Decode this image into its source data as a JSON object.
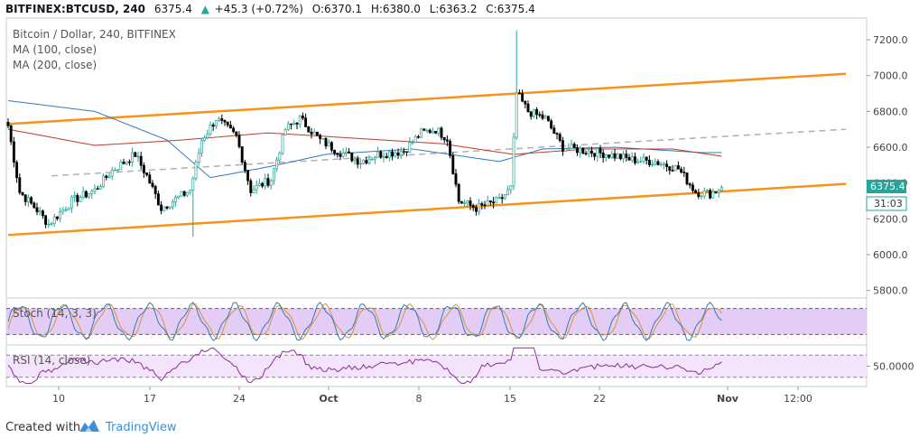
{
  "header": {
    "symbol": "BITFINEX:BTCUSD, 240",
    "last": "6375.4",
    "arrow": "▲",
    "change": "+45.3 (+0.72%)",
    "o_label": "O:",
    "o_value": "6370.1",
    "h_label": "H:",
    "h_value": "6380.0",
    "l_label": "L:",
    "l_value": "6363.2",
    "c_label": "C:",
    "c_value": "6375.4"
  },
  "legend": {
    "title": "Bitcoin / Dollar, 240, BITFINEX",
    "ma100": "MA (100, close)",
    "ma200": "MA (200, close)"
  },
  "price_badge": "6375.4",
  "countdown_badge": "31:03",
  "footer": {
    "created_with": "Created with",
    "brand": "TradingView"
  },
  "colors": {
    "up": "#26a69a",
    "down": "#000000",
    "candle_up_fill": "#ffffff",
    "channel": "#f7931a",
    "midline": "#b0b0b0",
    "ma100": "#2f7bbf",
    "ma200": "#c0392b",
    "stoch_k": "#2f7bbf",
    "stoch_d": "#e0902f",
    "stoch_band": "#e3cdf7",
    "rsi": "#8e2a9e",
    "rsi_band": "#f3e4fb",
    "badge": "#26a69a"
  },
  "chart_data": [
    {
      "type": "candlestick",
      "title": "Bitcoin / Dollar, 240, BITFINEX",
      "x_ticks": [
        "10",
        "17",
        "24",
        "Oct",
        "8",
        "15",
        "22",
        "Nov",
        "12:00"
      ],
      "y_ticks": [
        5800,
        6000,
        6200,
        6400,
        6600,
        6800,
        7000,
        7200
      ],
      "ylim": [
        5780,
        7250
      ],
      "last_price": 6375.4,
      "anchors": [
        {
          "i": 0,
          "p": 6720
        },
        {
          "i": 4,
          "p": 6350
        },
        {
          "i": 10,
          "p": 6250
        },
        {
          "i": 14,
          "p": 6170
        },
        {
          "i": 22,
          "p": 6300
        },
        {
          "i": 30,
          "p": 6360
        },
        {
          "i": 36,
          "p": 6470
        },
        {
          "i": 44,
          "p": 6560
        },
        {
          "i": 48,
          "p": 6440
        },
        {
          "i": 53,
          "p": 6260
        },
        {
          "i": 57,
          "p": 6300
        },
        {
          "i": 63,
          "p": 6360
        },
        {
          "i": 67,
          "p": 6640
        },
        {
          "i": 72,
          "p": 6760
        },
        {
          "i": 79,
          "p": 6660
        },
        {
          "i": 84,
          "p": 6360
        },
        {
          "i": 91,
          "p": 6420
        },
        {
          "i": 96,
          "p": 6700
        },
        {
          "i": 101,
          "p": 6760
        },
        {
          "i": 108,
          "p": 6640
        },
        {
          "i": 114,
          "p": 6580
        },
        {
          "i": 122,
          "p": 6520
        },
        {
          "i": 128,
          "p": 6560
        },
        {
          "i": 137,
          "p": 6580
        },
        {
          "i": 143,
          "p": 6680
        },
        {
          "i": 148,
          "p": 6700
        },
        {
          "i": 152,
          "p": 6650
        },
        {
          "i": 156,
          "p": 6300
        },
        {
          "i": 162,
          "p": 6260
        },
        {
          "i": 170,
          "p": 6300
        },
        {
          "i": 174,
          "p": 6370
        },
        {
          "i": 176,
          "p": 6900
        },
        {
          "i": 180,
          "p": 6800
        },
        {
          "i": 186,
          "p": 6760
        },
        {
          "i": 192,
          "p": 6600
        },
        {
          "i": 200,
          "p": 6580
        },
        {
          "i": 208,
          "p": 6560
        },
        {
          "i": 216,
          "p": 6530
        },
        {
          "i": 224,
          "p": 6520
        },
        {
          "i": 232,
          "p": 6480
        },
        {
          "i": 238,
          "p": 6350
        },
        {
          "i": 243,
          "p": 6340
        },
        {
          "i": 247,
          "p": 6375
        }
      ],
      "spike": {
        "i": 176,
        "high": 7250
      },
      "channel_upper": {
        "x1": 0,
        "p1": 6730,
        "x2": 290,
        "p2": 7010
      },
      "channel_lower": {
        "x1": 0,
        "p1": 6110,
        "x2": 290,
        "p2": 6395
      },
      "channel_mid": {
        "x1": 15,
        "p1": 6440,
        "x2": 290,
        "p2": 6700
      },
      "ma100": [
        {
          "i": 0,
          "p": 6860
        },
        {
          "i": 30,
          "p": 6800
        },
        {
          "i": 55,
          "p": 6640
        },
        {
          "i": 70,
          "p": 6430
        },
        {
          "i": 90,
          "p": 6490
        },
        {
          "i": 110,
          "p": 6560
        },
        {
          "i": 140,
          "p": 6590
        },
        {
          "i": 170,
          "p": 6520
        },
        {
          "i": 185,
          "p": 6590
        },
        {
          "i": 210,
          "p": 6600
        },
        {
          "i": 240,
          "p": 6570
        },
        {
          "i": 247,
          "p": 6570
        }
      ],
      "ma200": [
        {
          "i": 0,
          "p": 6700
        },
        {
          "i": 30,
          "p": 6610
        },
        {
          "i": 60,
          "p": 6640
        },
        {
          "i": 90,
          "p": 6680
        },
        {
          "i": 120,
          "p": 6650
        },
        {
          "i": 150,
          "p": 6620
        },
        {
          "i": 175,
          "p": 6560
        },
        {
          "i": 200,
          "p": 6590
        },
        {
          "i": 230,
          "p": 6590
        },
        {
          "i": 247,
          "p": 6550
        }
      ]
    },
    {
      "type": "line",
      "title": "Stoch (14, 3, 3)",
      "band": [
        20,
        80
      ],
      "ylim": [
        0,
        100
      ]
    },
    {
      "type": "line",
      "title": "RSI (14, close)",
      "y_ticks": [
        50
      ],
      "y_tick_labels": [
        "50.0000"
      ],
      "band": [
        30,
        70
      ],
      "ylim": [
        15,
        85
      ]
    }
  ]
}
